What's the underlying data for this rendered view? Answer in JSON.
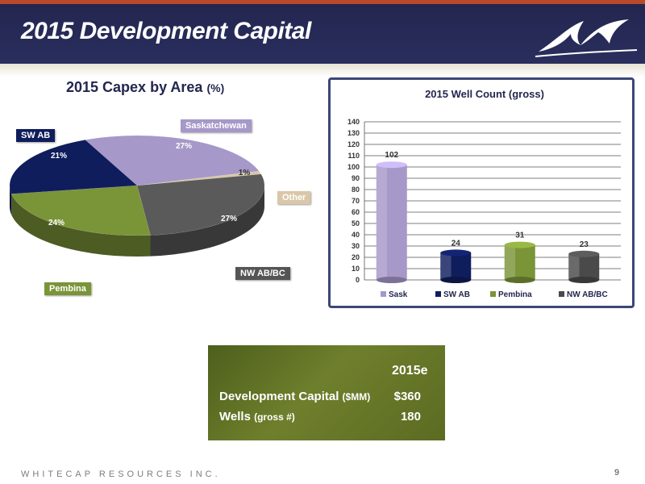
{
  "slide": {
    "title": "2015 Development Capital",
    "footer": "WHITECAP RESOURCES INC.",
    "page_number": "9"
  },
  "pie": {
    "title_main": "2015 Capex by Area",
    "title_unit": "(%)",
    "slices": [
      {
        "label": "Saskatchewan",
        "pct_label": "27%",
        "value": 27,
        "color": "#a698c8"
      },
      {
        "label": "Other",
        "pct_label": "1%",
        "value": 1,
        "color": "#d9c7a8"
      },
      {
        "label": "NW AB/BC",
        "pct_label": "27%",
        "value": 27,
        "color": "#5a5a5a"
      },
      {
        "label": "Pembina",
        "pct_label": "24%",
        "value": 24,
        "color": "#7a9438"
      },
      {
        "label": "SW AB",
        "pct_label": "21%",
        "value": 21,
        "color": "#0f1d5c"
      }
    ]
  },
  "chart_data": {
    "type": "bar",
    "title": "2015 Well Count (gross)",
    "categories": [
      "Sask",
      "SW AB",
      "Pembina",
      "NW AB/BC"
    ],
    "values": [
      102,
      24,
      31,
      23
    ],
    "colors": [
      "#a698c8",
      "#0f1d5c",
      "#7a9438",
      "#4a4a4a"
    ],
    "ylim": [
      0,
      140
    ],
    "yticks": [
      "0",
      "10",
      "20",
      "30",
      "40",
      "50",
      "60",
      "70",
      "80",
      "90",
      "100",
      "110",
      "120",
      "130",
      "140"
    ],
    "grid": true,
    "legend": "bottom"
  },
  "summary": {
    "column_header": "2015e",
    "rows": [
      {
        "label": "Development Capital",
        "unit": "($MM)",
        "value": "$360"
      },
      {
        "label": "Wells",
        "unit": "(gross #)",
        "value": "180"
      }
    ]
  }
}
